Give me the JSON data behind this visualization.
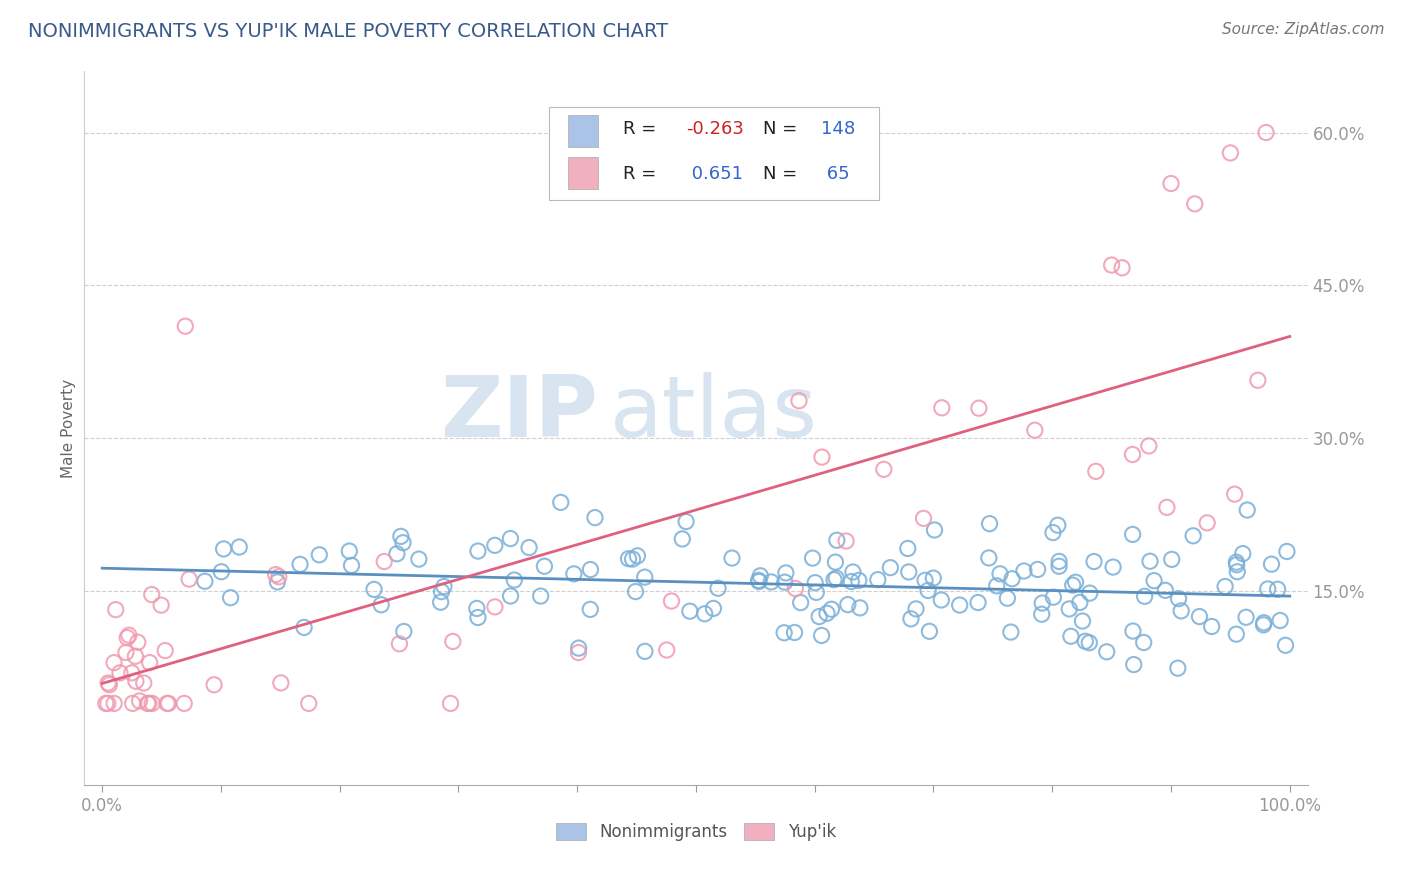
{
  "title": "NONIMMIGRANTS VS YUP'IK MALE POVERTY CORRELATION CHART",
  "source_text": "Source: ZipAtlas.com",
  "ylabel": "Male Poverty",
  "ytick_labels": [
    "15.0%",
    "30.0%",
    "45.0%",
    "60.0%"
  ],
  "ytick_values": [
    0.15,
    0.3,
    0.45,
    0.6
  ],
  "title_color": "#3a5a8c",
  "title_fontsize": 14,
  "source_color": "#777777",
  "source_fontsize": 11,
  "legend_color_blue": "#aac4e8",
  "legend_color_pink": "#f0b0c0",
  "dot_color_blue": "#7ab0d8",
  "dot_color_pink": "#f09ab0",
  "line_color_blue": "#5a90c0",
  "line_color_pink": "#e06080",
  "watermark_zip": "ZIP",
  "watermark_atlas": "atlas",
  "watermark_color": "#d8e4f0",
  "grid_color": "#d0d0d0",
  "background_color": "#ffffff",
  "tick_label_color": "#4a6a9c",
  "axis_tick_color": "#999999"
}
